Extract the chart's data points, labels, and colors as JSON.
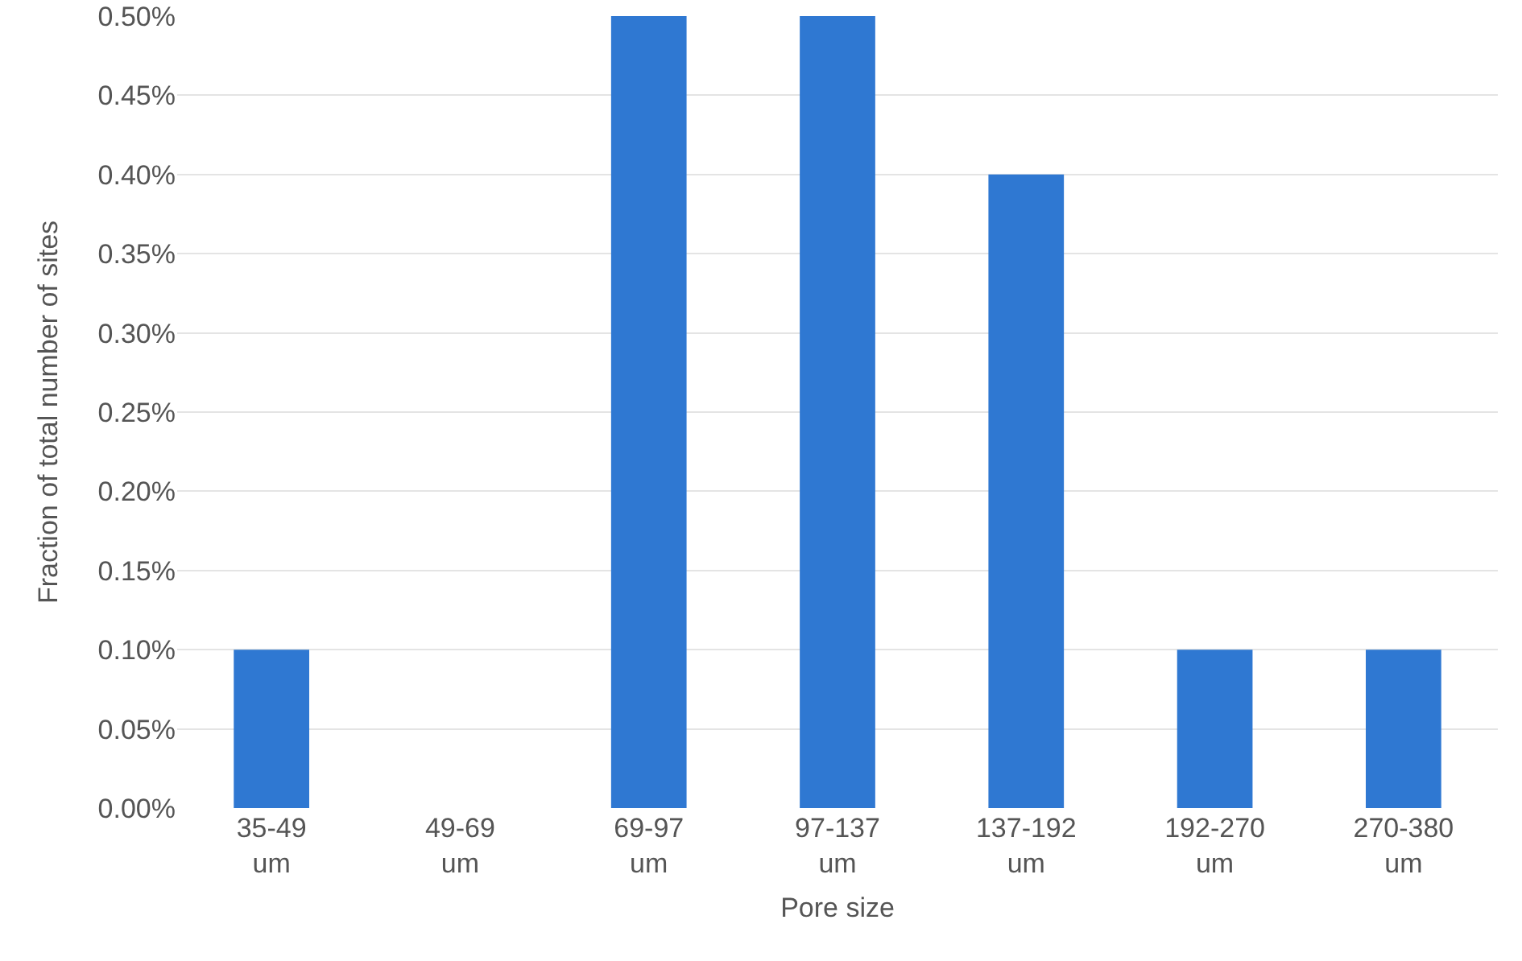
{
  "chart_data": {
    "type": "bar",
    "xlabel": "Pore size",
    "ylabel": "Fraction of total number of sites",
    "categories": [
      "35-49 um",
      "49-69 um",
      "69-97 um",
      "97-137 um",
      "137-192 um",
      "192-270 um",
      "270-380 um"
    ],
    "values": [
      0.1,
      0,
      0.5,
      0.5,
      0.4,
      0.1,
      0.1
    ],
    "color": "#2f78d2",
    "ylim": [
      0,
      0.5
    ],
    "yticks": [
      {
        "value": 0,
        "label": "0.00%"
      },
      {
        "value": 0.05,
        "label": "0.05%"
      },
      {
        "value": 0.1,
        "label": "0.10%"
      },
      {
        "value": 0.15,
        "label": "0.15%"
      },
      {
        "value": 0.2,
        "label": "0.20%"
      },
      {
        "value": 0.25,
        "label": "0.25%"
      },
      {
        "value": 0.3,
        "label": "0.30%"
      },
      {
        "value": 0.35,
        "label": "0.35%"
      },
      {
        "value": 0.4,
        "label": "0.40%"
      },
      {
        "value": 0.45,
        "label": "0.45%"
      },
      {
        "value": 0.5,
        "label": "0.50%"
      }
    ],
    "grid": "y"
  }
}
